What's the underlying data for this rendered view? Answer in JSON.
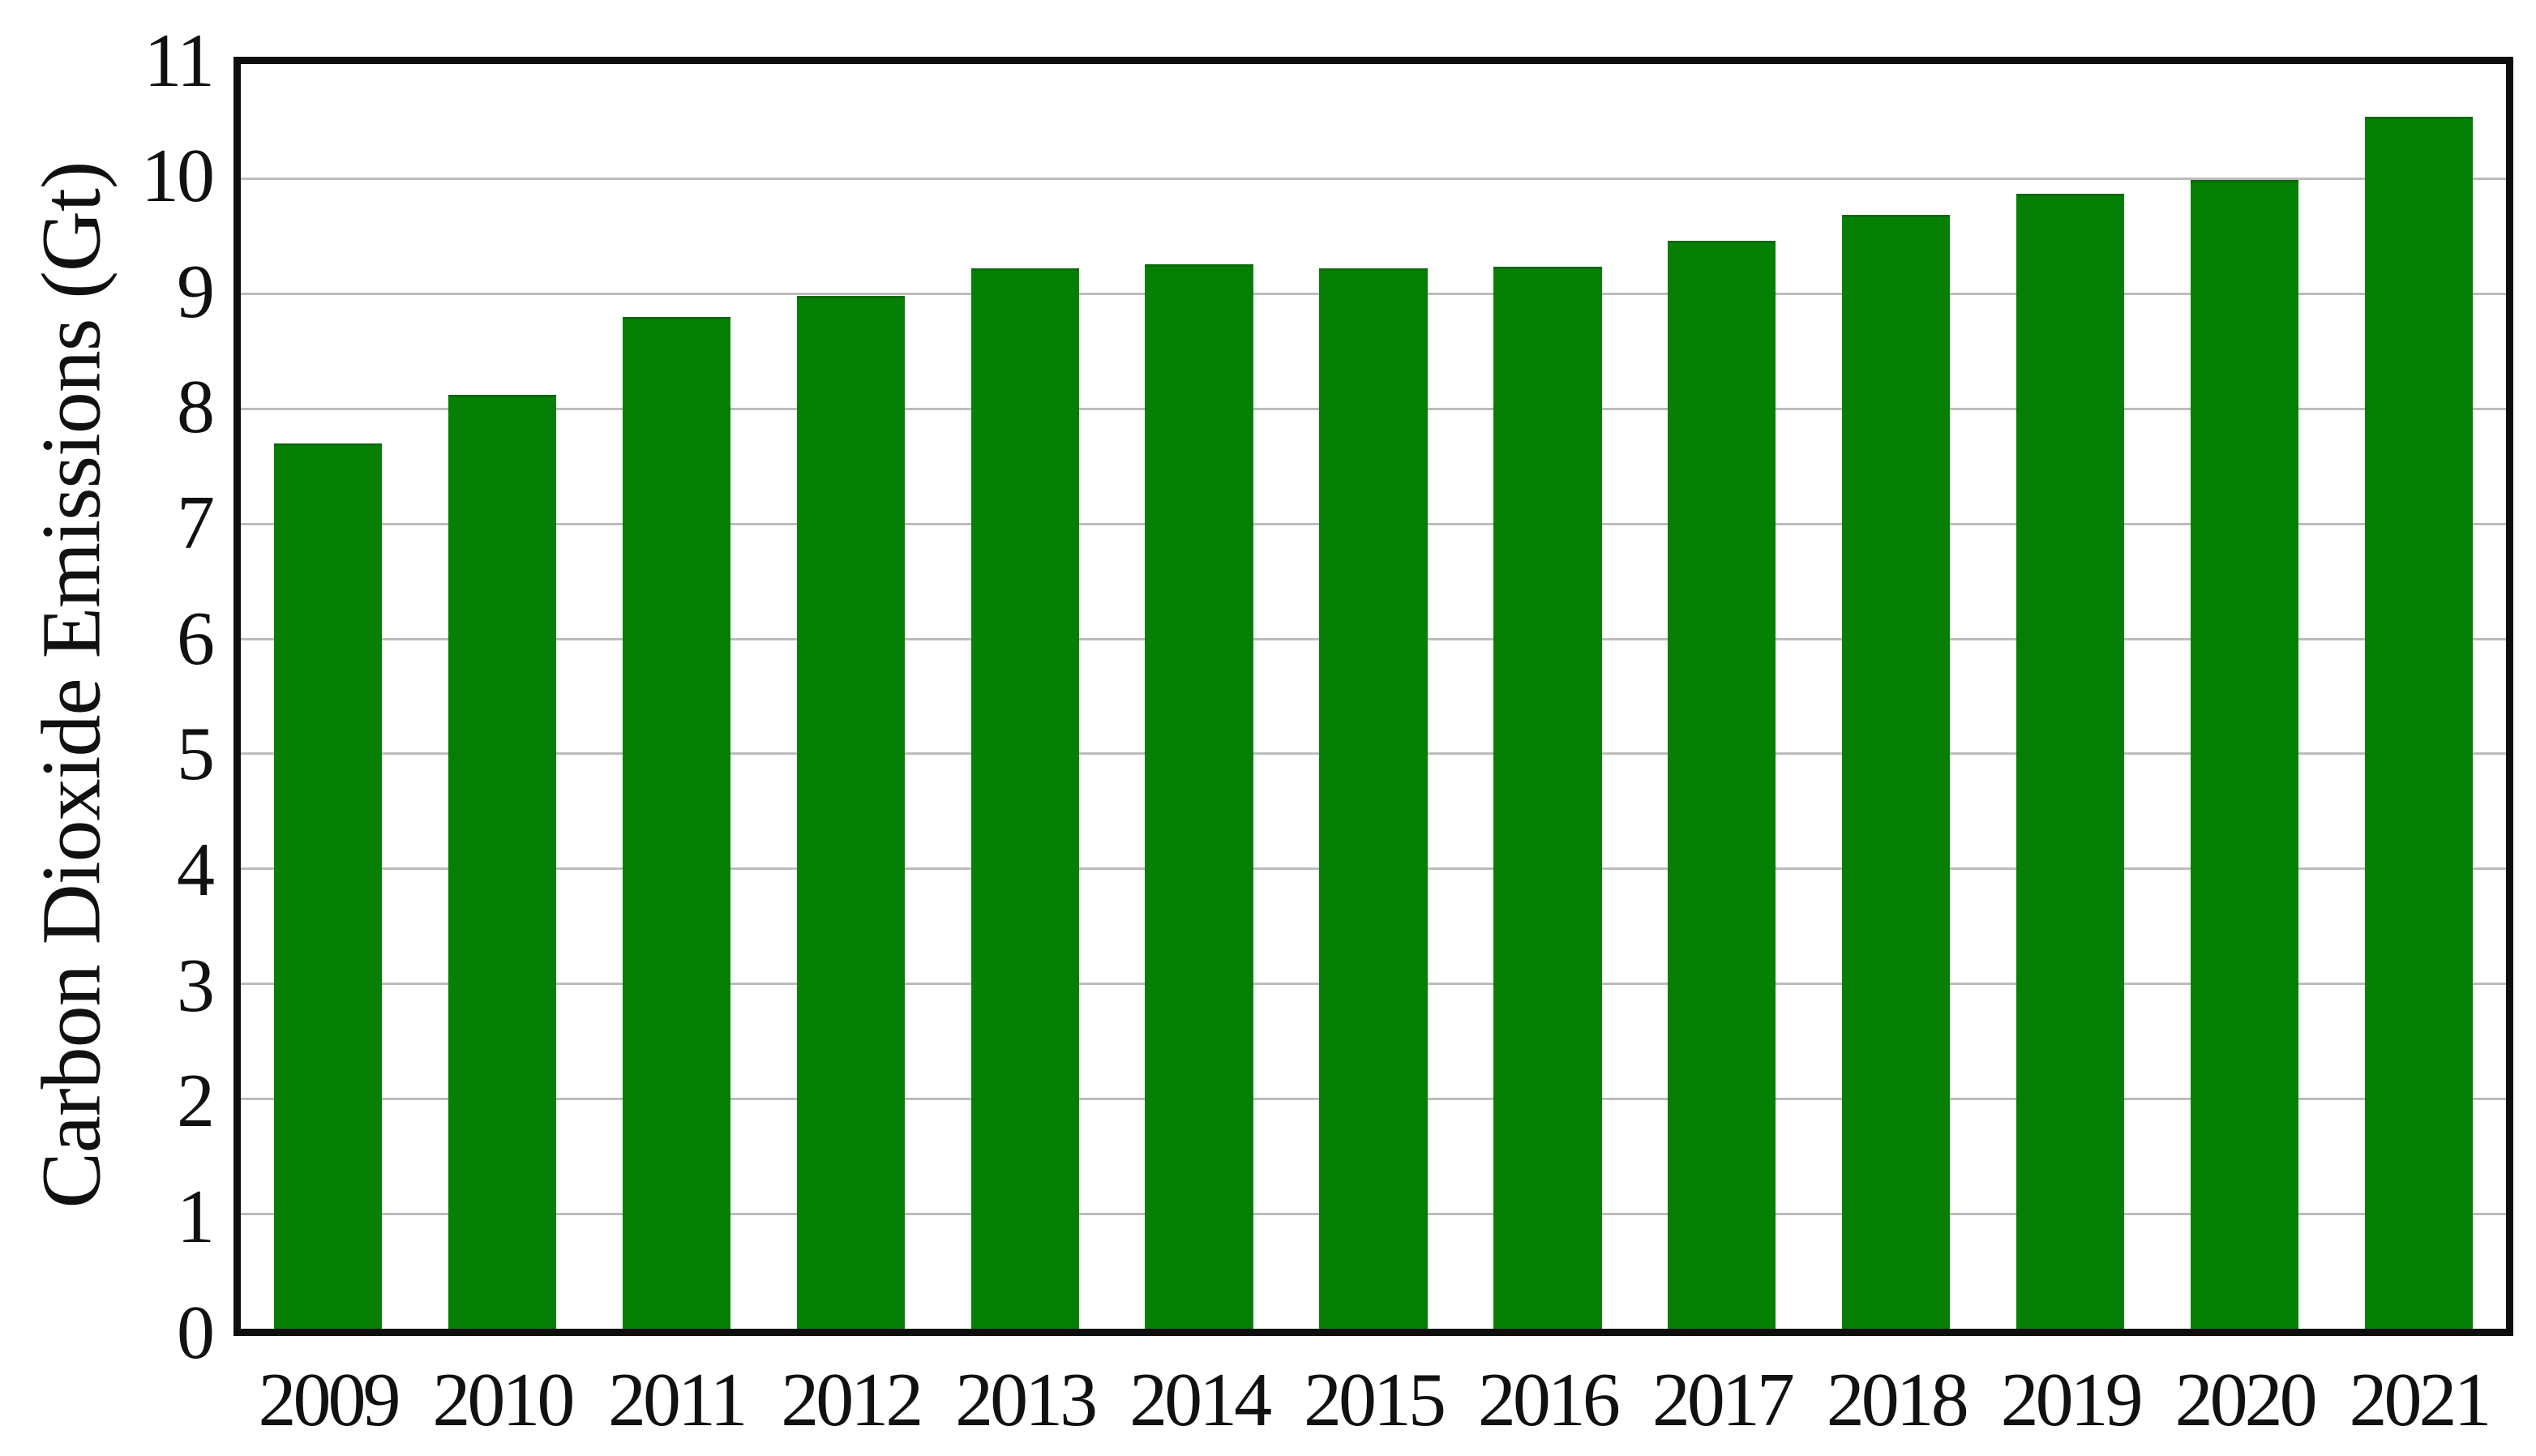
{
  "chart_data": {
    "type": "bar",
    "title": "",
    "xlabel": "",
    "ylabel": "Carbon Dioxide Emissions (Gt)",
    "categories": [
      "2009",
      "2010",
      "2011",
      "2012",
      "2013",
      "2014",
      "2015",
      "2016",
      "2017",
      "2018",
      "2019",
      "2020",
      "2021"
    ],
    "values": [
      7.7,
      8.12,
      8.8,
      8.98,
      9.22,
      9.26,
      9.22,
      9.24,
      9.46,
      9.69,
      9.87,
      9.99,
      10.54
    ],
    "ylim": [
      0,
      11
    ],
    "yticks": [
      0,
      1,
      2,
      3,
      4,
      5,
      6,
      7,
      8,
      9,
      10,
      11
    ],
    "grid": "horizontal",
    "legend_position": "none",
    "bar_color": "#058005",
    "grid_color": "#bcbcbc",
    "frame_color": "#0e0e0e",
    "text_color": "#111111",
    "background_color": "#ffffff"
  }
}
